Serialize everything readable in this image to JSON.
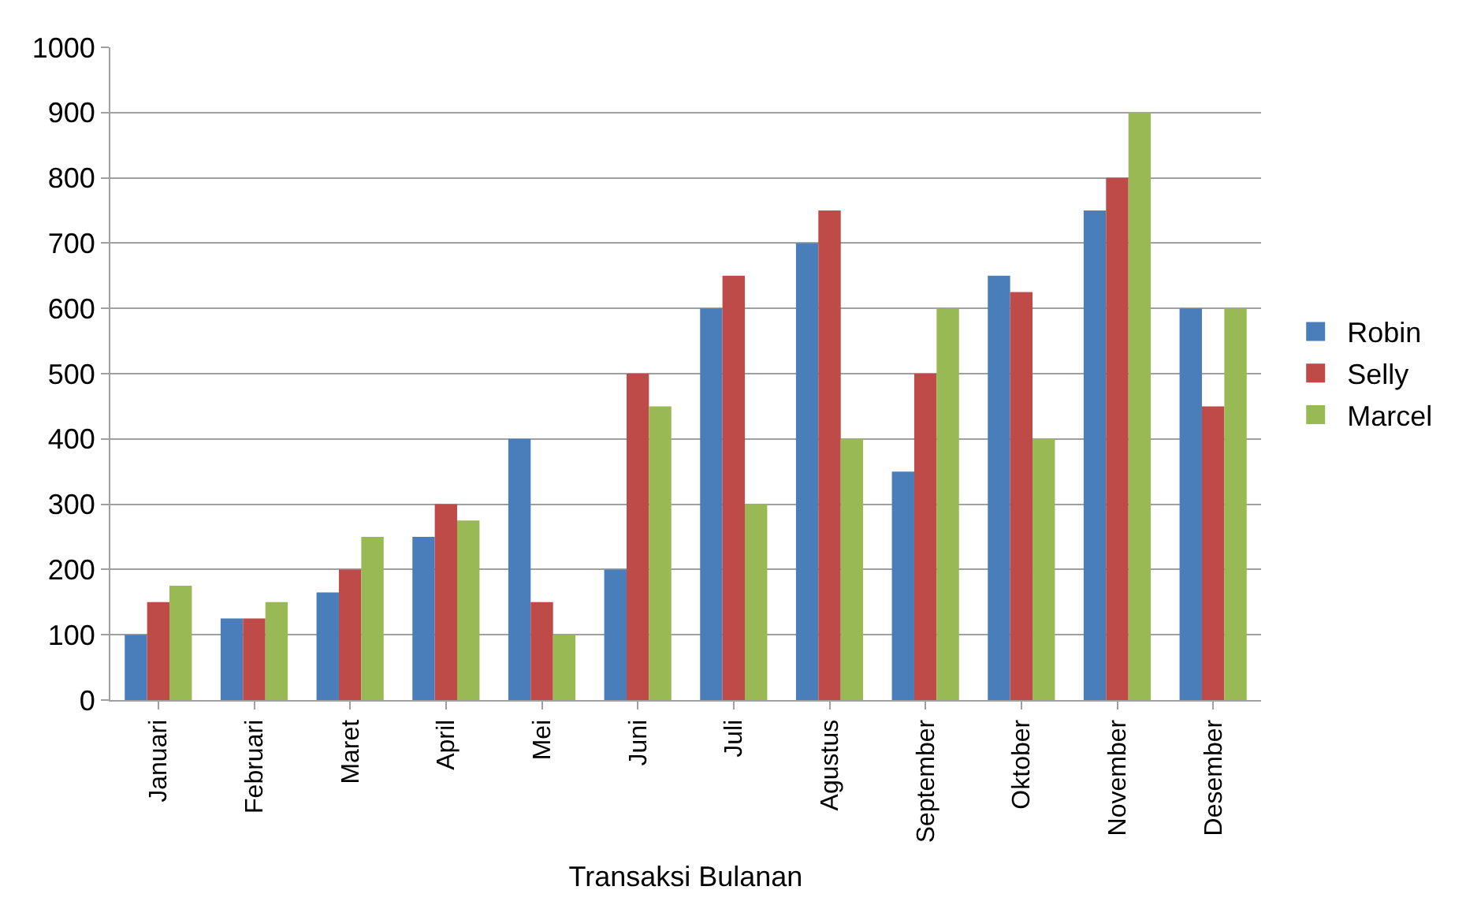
{
  "chart_data": {
    "type": "bar",
    "xlabel": "Transaksi Bulanan",
    "categories": [
      "Januari",
      "Februari",
      "Maret",
      "April",
      "Mei",
      "Juni",
      "Juli",
      "Agustus",
      "September",
      "Oktober",
      "November",
      "Desember"
    ],
    "series": [
      {
        "name": "Robin",
        "color": "#4a7ebb",
        "values": [
          100,
          125,
          165,
          250,
          400,
          200,
          600,
          700,
          350,
          650,
          750,
          600
        ]
      },
      {
        "name": "Selly",
        "color": "#be4b48",
        "values": [
          150,
          125,
          200,
          300,
          150,
          500,
          650,
          750,
          500,
          625,
          800,
          450
        ]
      },
      {
        "name": "Marcel",
        "color": "#98b954",
        "values": [
          175,
          150,
          250,
          275,
          100,
          450,
          300,
          400,
          600,
          400,
          900,
          600
        ]
      }
    ],
    "ylim": [
      0,
      1000
    ],
    "yticks": [
      0,
      100,
      200,
      300,
      400,
      500,
      600,
      700,
      800,
      900,
      1000
    ],
    "grid": "y",
    "legend": "right"
  }
}
